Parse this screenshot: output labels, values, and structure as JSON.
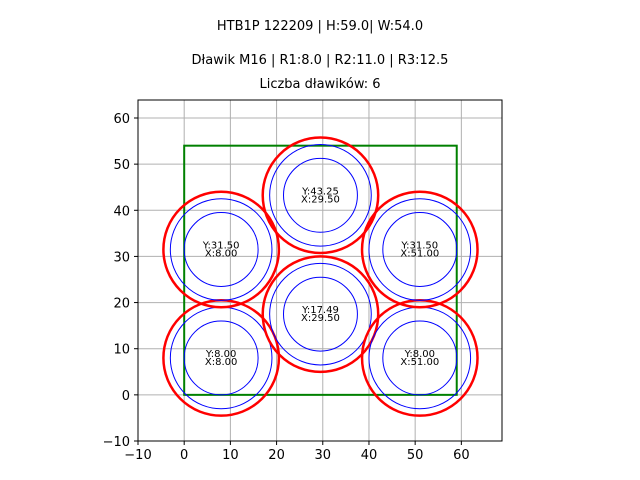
{
  "titles": {
    "line1": "HTB1P 122209 | H:59.0| W:54.0",
    "line2": "Dławik M16 | R1:8.0 | R2:11.0 | R3:12.5",
    "line3": "Liczba dławików: 6"
  },
  "chart_data": {
    "type": "scatter",
    "title": "HTB1P 122209 | H:59.0| W:54.0",
    "subtitle": "Dławik M16 | R1:8.0 | R2:11.0 | R3:12.5 — Liczba dławików: 6",
    "xlabel": "",
    "ylabel": "",
    "xlim": [
      -10,
      68.8
    ],
    "ylim": [
      -10,
      63.9
    ],
    "xticks": [
      -10,
      0,
      10,
      20,
      30,
      40,
      50,
      60
    ],
    "yticks": [
      -10,
      0,
      10,
      20,
      30,
      40,
      50,
      60
    ],
    "grid": true,
    "rectangle": {
      "x0": 0,
      "y0": 0,
      "width": 59.0,
      "height": 54.0,
      "color": "#008000"
    },
    "radii": {
      "R1": 8.0,
      "R2": 11.0,
      "R3": 12.5
    },
    "colors": {
      "R1": "#0000ff",
      "R2": "#0000ff",
      "R3": "#ff0000"
    },
    "glands": [
      {
        "x": 8.0,
        "y": 8.0,
        "label_y": "Y:8.00",
        "label_x": "X:8.00"
      },
      {
        "x": 8.0,
        "y": 31.5,
        "label_y": "Y:31.50",
        "label_x": "X:8.00"
      },
      {
        "x": 29.5,
        "y": 17.49,
        "label_y": "Y:17.49",
        "label_x": "X:29.50"
      },
      {
        "x": 29.5,
        "y": 43.25,
        "label_y": "Y:43.25",
        "label_x": "X:29.50"
      },
      {
        "x": 51.0,
        "y": 8.0,
        "label_y": "Y:8.00",
        "label_x": "X:51.00"
      },
      {
        "x": 51.0,
        "y": 31.5,
        "label_y": "Y:31.50",
        "label_x": "X:51.00"
      }
    ]
  }
}
